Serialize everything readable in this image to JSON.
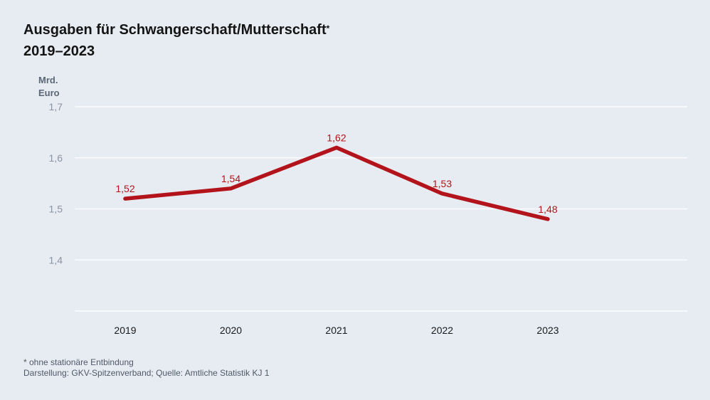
{
  "title": {
    "line1": "Ausgaben für Schwangerschaft/Mutterschaft",
    "marker": "*",
    "line2": "2019–2023"
  },
  "y_unit": {
    "line1": "Mrd.",
    "line2": "Euro"
  },
  "footnote": {
    "note": "* ohne stationäre Entbindung",
    "source": "Darstellung: GKV-Spitzenverband; Quelle: Amtliche Statistik KJ 1"
  },
  "colors": {
    "line": "#b3141b",
    "label": "#b3141b",
    "grid": "#ffffff",
    "background": "#e7ebf2"
  },
  "chart_data": {
    "type": "line",
    "title": "Ausgaben für Schwangerschaft/Mutterschaft* 2019–2023",
    "ylabel": "Mrd. Euro",
    "xlabel": "",
    "categories": [
      "2019",
      "2020",
      "2021",
      "2022",
      "2023"
    ],
    "values": [
      1.52,
      1.54,
      1.62,
      1.53,
      1.48
    ],
    "value_labels": [
      "1,52",
      "1,54",
      "1,62",
      "1,53",
      "1,48"
    ],
    "yticks": [
      1.4,
      1.5,
      1.6,
      1.7
    ],
    "ytick_labels": [
      "1,4",
      "1,5",
      "1,6",
      "1,7"
    ],
    "ylim": [
      1.3,
      1.7
    ],
    "grid": true,
    "legend": "none"
  }
}
